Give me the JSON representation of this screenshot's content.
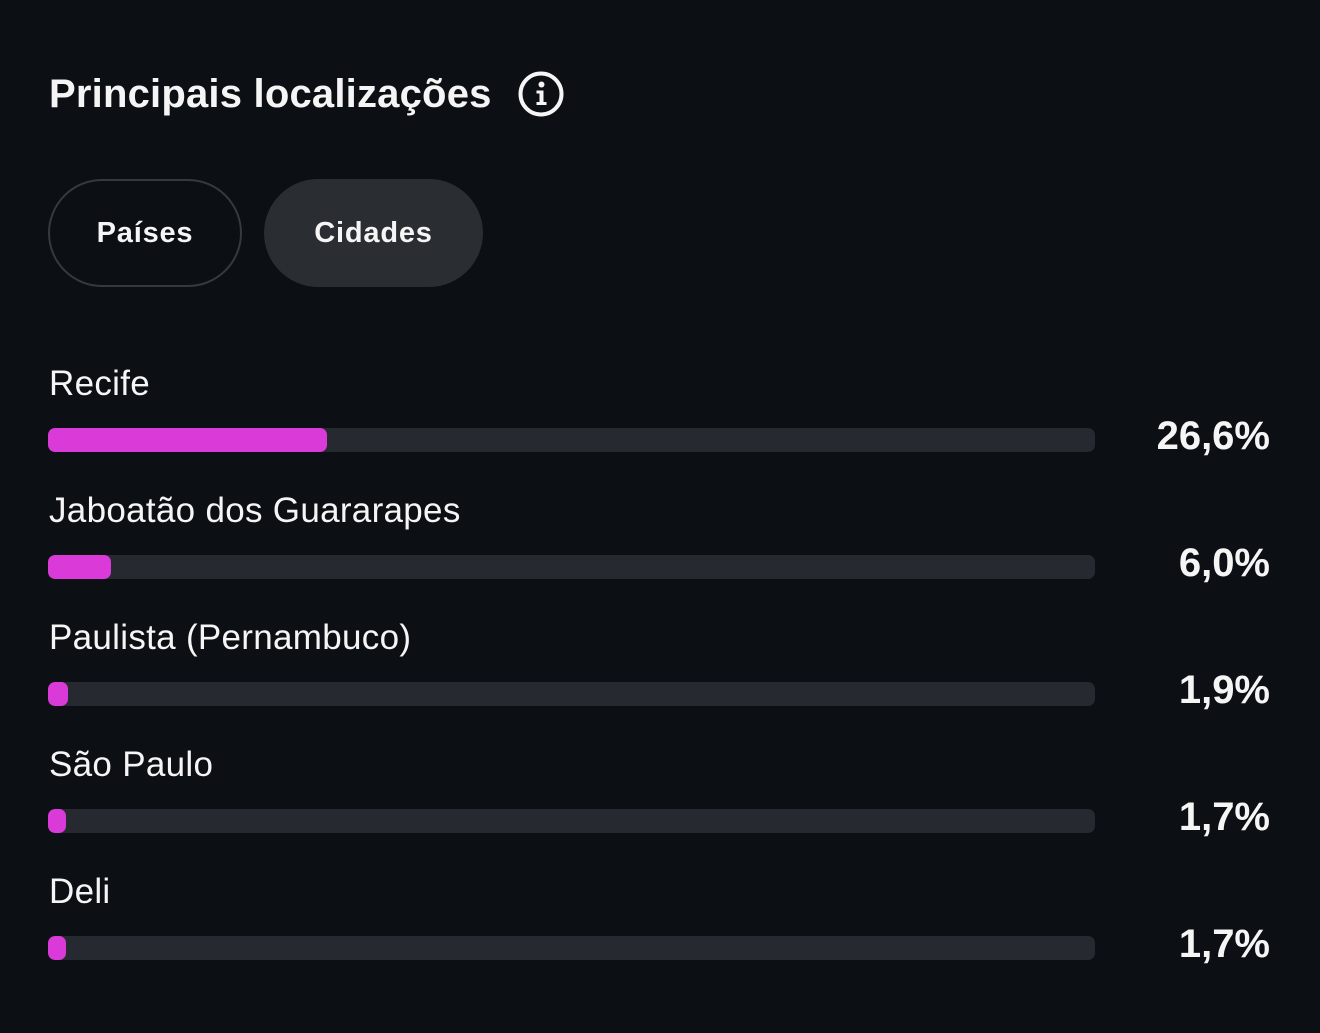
{
  "header": {
    "title": "Principais localizações",
    "info_icon": "info-icon"
  },
  "tabs": [
    {
      "label": "Países",
      "selected": false
    },
    {
      "label": "Cidades",
      "selected": true
    }
  ],
  "locations": [
    {
      "name": "Recife",
      "percent_label": "26,6%",
      "fraction": 0.266
    },
    {
      "name": "Jaboatão dos Guararapes",
      "percent_label": "6,0%",
      "fraction": 0.06
    },
    {
      "name": "Paulista (Pernambuco)",
      "percent_label": "1,9%",
      "fraction": 0.019
    },
    {
      "name": "São Paulo",
      "percent_label": "1,7%",
      "fraction": 0.017
    },
    {
      "name": "Deli",
      "percent_label": "1,7%",
      "fraction": 0.017
    }
  ],
  "colors": {
    "background": "#0c1014",
    "bar_fill": "#d93ad8",
    "bar_track": "#26292f",
    "selected_tab": "#2a2d32",
    "text": "#f5f5f5"
  }
}
